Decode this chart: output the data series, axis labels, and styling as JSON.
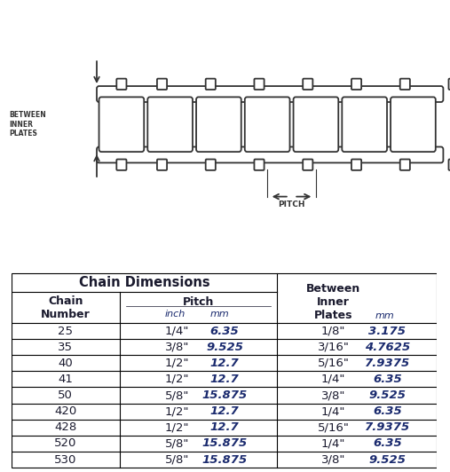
{
  "title": "Chain Dimensions",
  "rows": [
    [
      "25",
      "1/4\"",
      "6.35",
      "1/8\"",
      "3.175"
    ],
    [
      "35",
      "3/8\"",
      "9.525",
      "3/16\"",
      "4.7625"
    ],
    [
      "40",
      "1/2\"",
      "12.7",
      "5/16\"",
      "7.9375"
    ],
    [
      "41",
      "1/2\"",
      "12.7",
      "1/4\"",
      "6.35"
    ],
    [
      "50",
      "5/8\"",
      "15.875",
      "3/8\"",
      "9.525"
    ],
    [
      "420",
      "1/2\"",
      "12.7",
      "1/4\"",
      "6.35"
    ],
    [
      "428",
      "1/2\"",
      "12.7",
      "5/16\"",
      "7.9375"
    ],
    [
      "520",
      "5/8\"",
      "15.875",
      "1/4\"",
      "6.35"
    ],
    [
      "530",
      "5/8\"",
      "15.875",
      "3/8\"",
      "9.525"
    ]
  ],
  "bg_color": "#ffffff",
  "line_color": "#000000",
  "text_dark": "#1a1a2e",
  "text_blue_italic": "#1a2a6e",
  "chain_color": "#333333",
  "diagram_between_text": "BETWEEN\nINNER\nPLATES",
  "diagram_pitch_text": "PITCH"
}
